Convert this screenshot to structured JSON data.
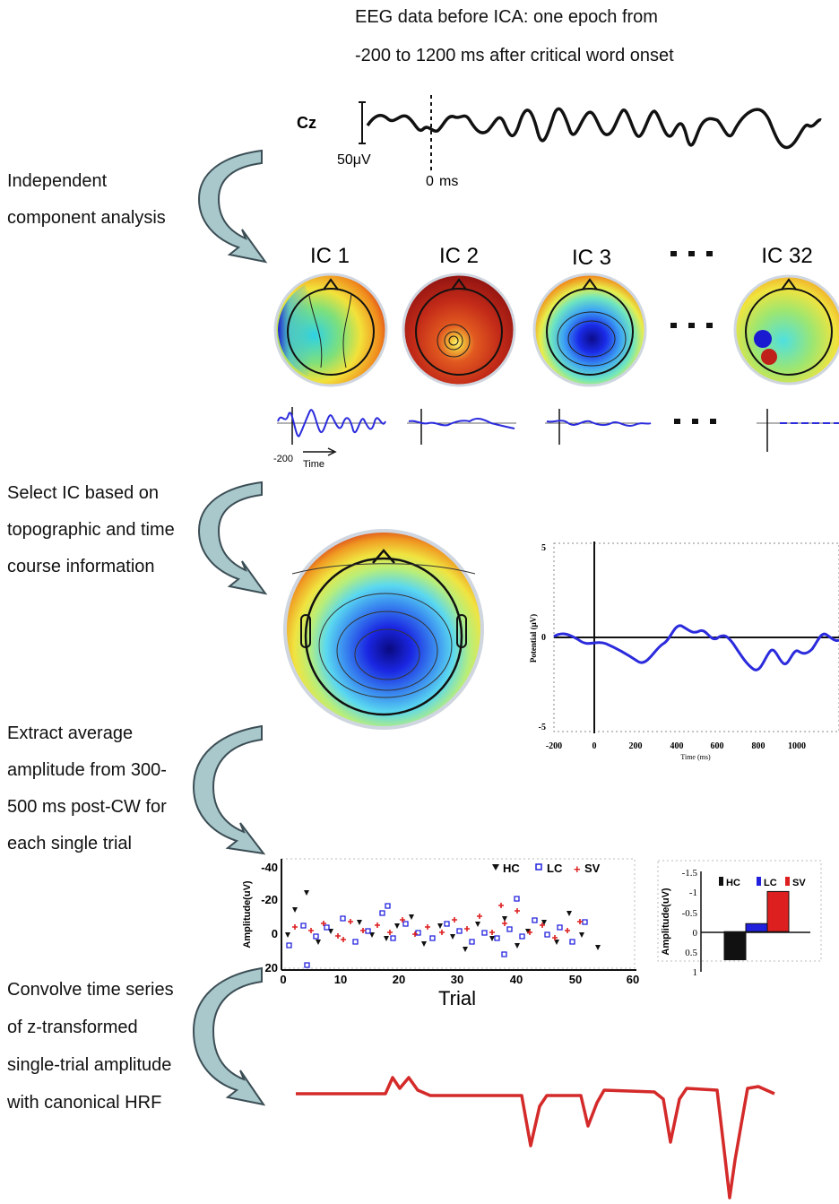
{
  "header": {
    "line1": "EEG data before ICA: one epoch from",
    "line2": "-200 to 1200 ms after critical word onset"
  },
  "eeg": {
    "channel": "Cz",
    "scale": "50μV",
    "zero": "0",
    "zero_unit": "ms"
  },
  "steps": {
    "ica": [
      "Independent",
      "component analysis"
    ],
    "select": [
      "Select IC based on",
      "topographic and time",
      "course information"
    ],
    "extract": [
      "Extract average",
      "amplitude from 300-",
      "500 ms post-CW for",
      "each single trial"
    ],
    "convolve": [
      "Convolve time series",
      "of z-transformed",
      "single-trial amplitude",
      "with canonical HRF"
    ]
  },
  "components": {
    "labels": [
      "IC 1",
      "IC 2",
      "IC 3",
      "IC 32"
    ],
    "ellipsis": "▪ ▪ ▪",
    "time_start": "-200",
    "time_label": "Time"
  },
  "erp": {
    "ylabel": "Potential (μV)",
    "xlabel": "Time (ms)",
    "yticks": [
      "5",
      "0",
      "-5"
    ],
    "xticks": [
      "-200",
      "0",
      "200",
      "400",
      "600",
      "800",
      "1000"
    ]
  },
  "scatter": {
    "ylabel": "Amplitude(uV)",
    "xlabel": "Trial",
    "yticks": [
      "-40",
      "-20",
      "0",
      "20"
    ],
    "xticks": [
      "0",
      "10",
      "20",
      "30",
      "40",
      "50",
      "60"
    ],
    "legend": [
      "HC",
      "LC",
      "SV"
    ]
  },
  "bars": {
    "ylabel": "Amplitude(uV)",
    "yticks": [
      "-1.5",
      "-1",
      "-0.5",
      "0",
      "0.5",
      "1"
    ],
    "legend": [
      "HC",
      "LC",
      "SV"
    ]
  },
  "colors": {
    "eeg": "#111111",
    "ic_trace": "#2b2bdd",
    "hc": "#111111",
    "lc": "#2020dd",
    "sv": "#dd1f1f",
    "hrf": "#d42a2a",
    "arrow_fill": "#a8c8cc",
    "arrow_stroke": "#3c4e55"
  },
  "chart_data": [
    {
      "type": "bar",
      "categories": [
        "HC",
        "LC",
        "SV"
      ],
      "values": [
        0.7,
        -0.2,
        -1.0
      ],
      "ylabel": "Amplitude(uV)",
      "ylim": [
        1,
        -1.5
      ]
    }
  ]
}
